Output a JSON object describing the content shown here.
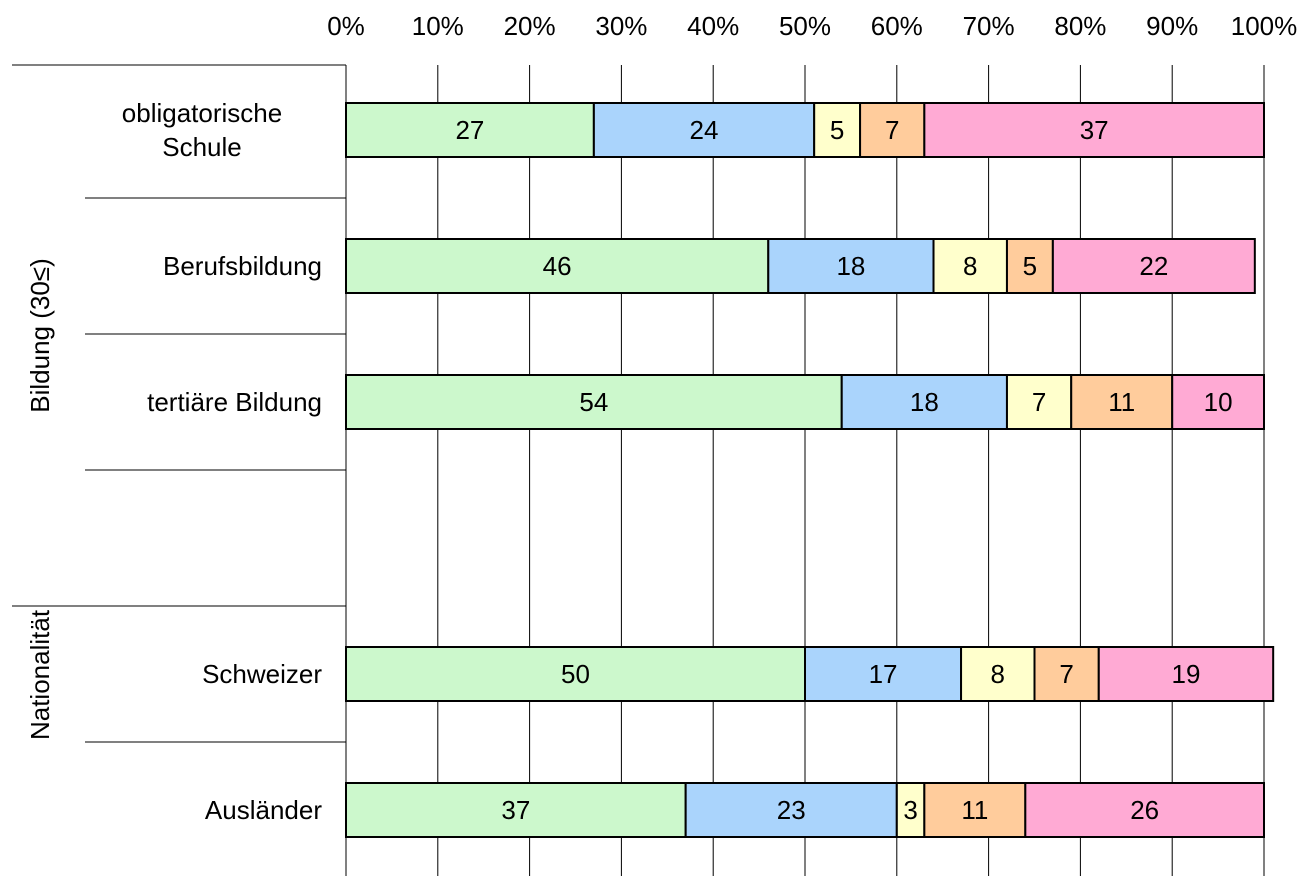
{
  "chart_data": {
    "type": "stacked-bar-horizontal",
    "categories": [
      "obligatorische Schule",
      "Berufsbildung",
      "tertiäre Bildung",
      null,
      "Schweizer",
      "Ausländer"
    ],
    "groups": [
      {
        "label": "Bildung (30≤)"
      },
      {
        "label": "Nationalität"
      }
    ],
    "series": [
      {
        "color": "#ccf8cc",
        "values": [
          27,
          46,
          54,
          null,
          50,
          37
        ]
      },
      {
        "color": "#aad4fc",
        "values": [
          24,
          18,
          18,
          null,
          17,
          23
        ]
      },
      {
        "color": "#ffffcc",
        "values": [
          5,
          8,
          7,
          null,
          8,
          3
        ]
      },
      {
        "color": "#ffcc9c",
        "values": [
          7,
          5,
          11,
          null,
          7,
          11
        ]
      },
      {
        "color": "#ffaad4",
        "values": [
          37,
          22,
          10,
          null,
          19,
          26
        ]
      }
    ],
    "xlim": [
      0,
      100
    ],
    "xticks": [
      {
        "value": 0,
        "label": "0%"
      },
      {
        "value": 10,
        "label": "10%"
      },
      {
        "value": 20,
        "label": "20%"
      },
      {
        "value": 30,
        "label": "30%"
      },
      {
        "value": 40,
        "label": "40%"
      },
      {
        "value": 50,
        "label": "50%"
      },
      {
        "value": 60,
        "label": "60%"
      },
      {
        "value": 70,
        "label": "70%"
      },
      {
        "value": 80,
        "label": "80%"
      },
      {
        "value": 90,
        "label": "90%"
      },
      {
        "value": 100,
        "label": "100%"
      }
    ],
    "grid": true
  }
}
